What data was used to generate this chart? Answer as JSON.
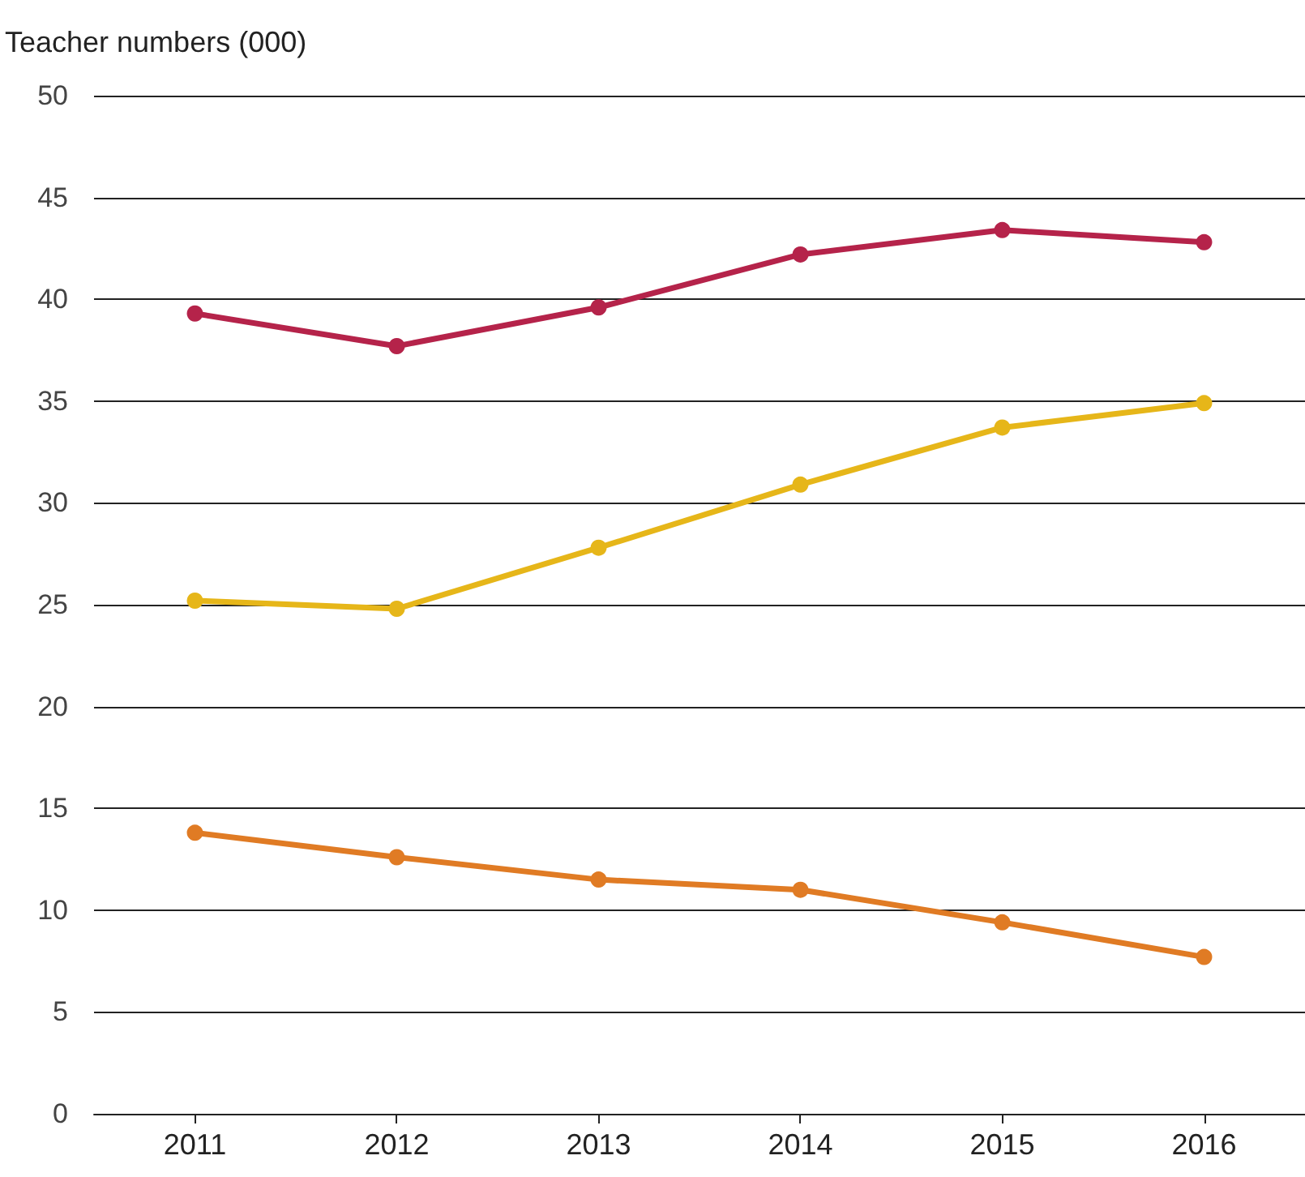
{
  "chart_data": {
    "type": "line",
    "ylabel": "Teacher numbers (000)",
    "categories": [
      "2011",
      "2012",
      "2013",
      "2014",
      "2015",
      "2016"
    ],
    "series": [
      {
        "color": "#b5234a",
        "values": [
          39.3,
          37.7,
          39.6,
          42.2,
          43.4,
          42.8
        ]
      },
      {
        "color": "#e6b619",
        "values": [
          25.2,
          24.8,
          27.8,
          30.9,
          33.7,
          34.9
        ]
      },
      {
        "color": "#e07b24",
        "values": [
          13.8,
          12.6,
          11.5,
          11.0,
          9.4,
          7.7
        ]
      }
    ],
    "ylim": [
      0,
      50
    ],
    "yticks": [
      0,
      5,
      10,
      15,
      20,
      25,
      30,
      35,
      40,
      45,
      50
    ],
    "grid": "y",
    "marker": "circle",
    "line_style": "solid"
  }
}
